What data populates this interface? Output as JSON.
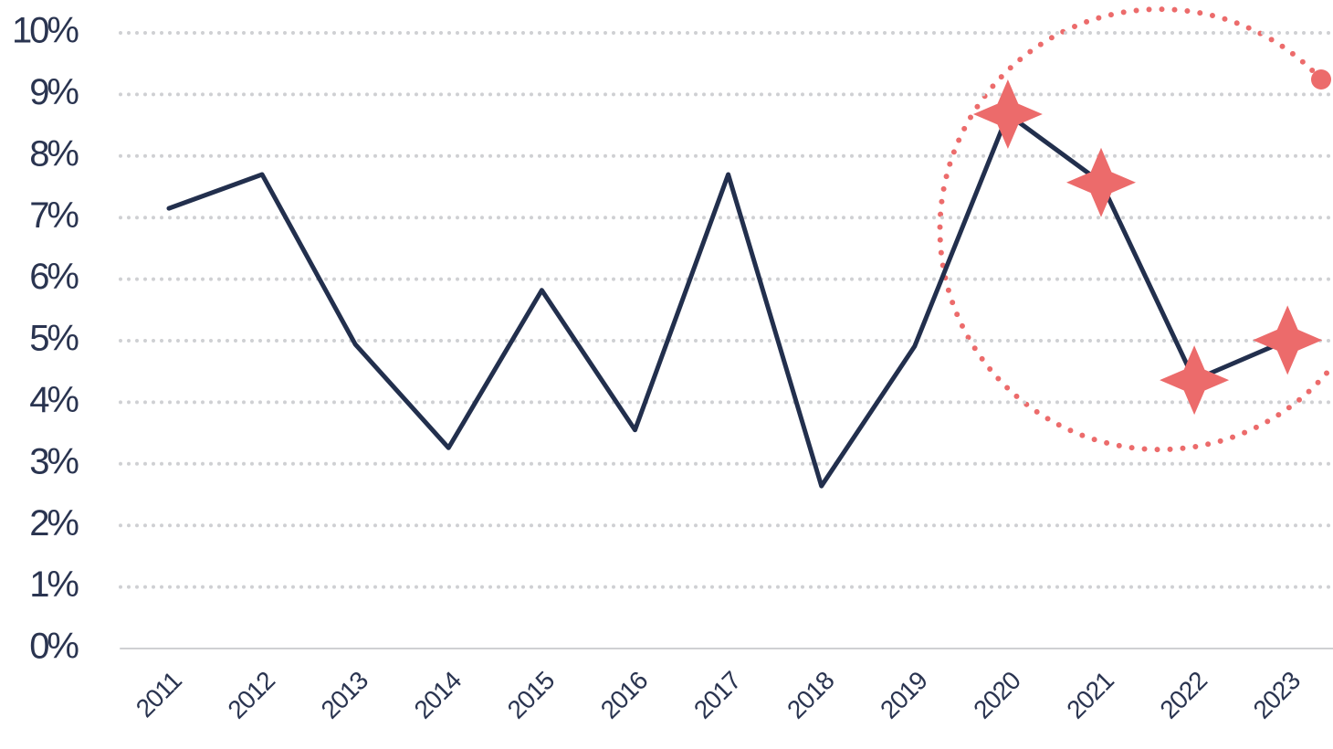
{
  "chart_data": {
    "type": "line",
    "categories": [
      "2011",
      "2012",
      "2013",
      "2014",
      "2015",
      "2016",
      "2017",
      "2018",
      "2019",
      "2020",
      "2021",
      "2022",
      "2023"
    ],
    "series": [
      {
        "color": "#222f4d",
        "values": [
          7.15,
          7.7,
          4.94,
          3.26,
          5.82,
          3.55,
          7.7,
          2.64,
          4.91,
          8.68,
          7.57,
          4.36,
          5.01
        ],
        "markers": [
          "none",
          "none",
          "none",
          "none",
          "none",
          "none",
          "none",
          "none",
          "none",
          "star",
          "star",
          "star",
          "star"
        ],
        "marker_color": "#ec6b6b"
      }
    ],
    "ylim": [
      0,
      10
    ],
    "yticks": [
      {
        "value": 0,
        "label": "0%"
      },
      {
        "value": 1,
        "label": "1%"
      },
      {
        "value": 2,
        "label": "2%"
      },
      {
        "value": 3,
        "label": "3%"
      },
      {
        "value": 4,
        "label": "4%"
      },
      {
        "value": 5,
        "label": "5%"
      },
      {
        "value": 6,
        "label": "6%"
      },
      {
        "value": 7,
        "label": "7%"
      },
      {
        "value": 8,
        "label": "8%"
      },
      {
        "value": 9,
        "label": "9%"
      },
      {
        "value": 10,
        "label": "10%"
      }
    ],
    "grid": true
  }
}
